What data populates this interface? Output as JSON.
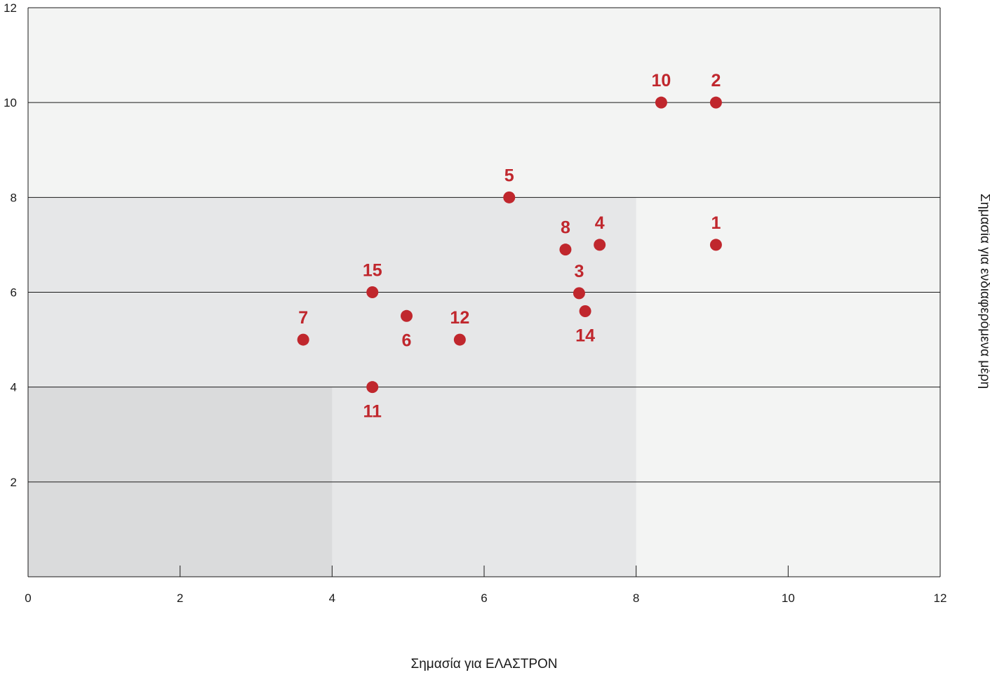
{
  "chart_data": {
    "type": "scatter",
    "title": "",
    "xlabel": "Σημασία για ΕΛΑΣΤΡΟΝ",
    "ylabel": "Σημασία για ενδιαφερόμενα μέρη",
    "xlim": [
      0,
      12
    ],
    "ylim": [
      0,
      12
    ],
    "xticks": [
      "0",
      "2",
      "4",
      "6",
      "8",
      "10",
      "12"
    ],
    "yticks": [
      "2",
      "4",
      "6",
      "8",
      "10",
      "12"
    ],
    "grid": "horizontal",
    "legend": "none",
    "zones": [
      {
        "x": [
          0,
          12
        ],
        "y": [
          0,
          12
        ],
        "color": "#f3f4f3"
      },
      {
        "x": [
          0,
          8
        ],
        "y": [
          0,
          8
        ],
        "color": "#e6e7e8"
      },
      {
        "x": [
          0,
          4
        ],
        "y": [
          0,
          4
        ],
        "color": "#dadbdc"
      }
    ],
    "points": [
      {
        "label": "1",
        "x": 9.05,
        "y": 7.0,
        "label_position": "above"
      },
      {
        "label": "2",
        "x": 9.05,
        "y": 10.0,
        "label_position": "above"
      },
      {
        "label": "3",
        "x": 7.25,
        "y": 5.98,
        "label_position": "above"
      },
      {
        "label": "4",
        "x": 7.52,
        "y": 7.0,
        "label_position": "above"
      },
      {
        "label": "5",
        "x": 6.33,
        "y": 8.0,
        "label_position": "above"
      },
      {
        "label": "6",
        "x": 4.98,
        "y": 5.5,
        "label_position": "below"
      },
      {
        "label": "7",
        "x": 3.62,
        "y": 5.0,
        "label_position": "above"
      },
      {
        "label": "8",
        "x": 7.07,
        "y": 6.9,
        "label_position": "above"
      },
      {
        "label": "10",
        "x": 8.33,
        "y": 10.0,
        "label_position": "above"
      },
      {
        "label": "11",
        "x": 4.53,
        "y": 4.0,
        "label_position": "below"
      },
      {
        "label": "12",
        "x": 5.68,
        "y": 5.0,
        "label_position": "above"
      },
      {
        "label": "14",
        "x": 7.33,
        "y": 5.6,
        "label_position": "below"
      },
      {
        "label": "15",
        "x": 4.53,
        "y": 6.0,
        "label_position": "above"
      }
    ],
    "point_color": "#c0272d"
  }
}
